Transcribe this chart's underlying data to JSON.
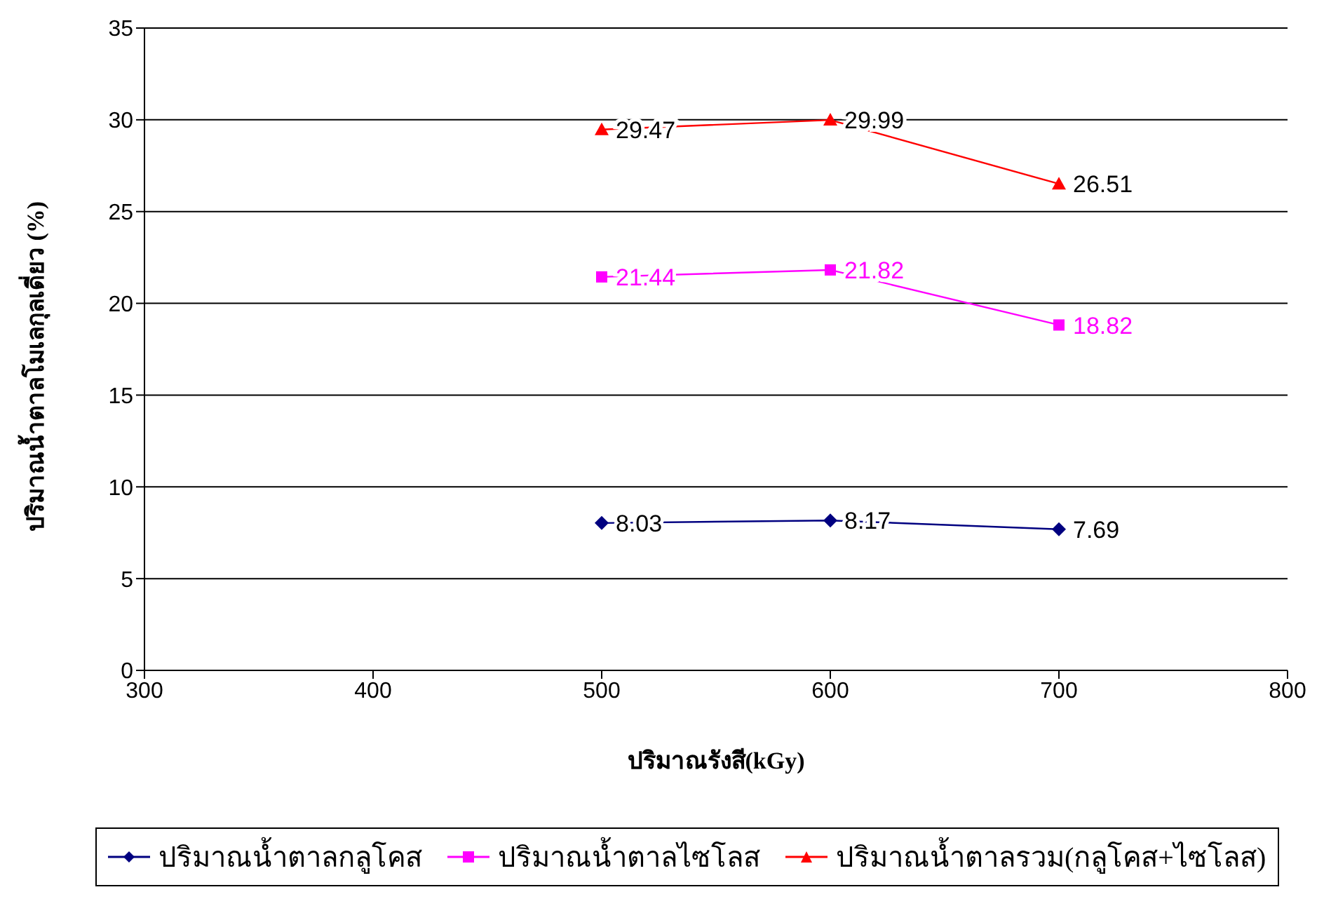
{
  "chart_data": {
    "type": "line",
    "xlabel": "ปริมาณรังสี(kGy)",
    "ylabel": "ปริมาณน้ำตาลโมเลกุลเดี่ยว (%)",
    "x": [
      500,
      600,
      700
    ],
    "series": [
      {
        "name": "ปริมาณน้ำตาลกลูโคส",
        "color": "#000080",
        "marker": "diamond",
        "values": [
          8.03,
          8.17,
          7.69
        ]
      },
      {
        "name": "ปริมาณน้ำตาลไซโลส",
        "color": "#ff00ff",
        "marker": "square",
        "values": [
          21.44,
          21.82,
          18.82
        ]
      },
      {
        "name": "ปริมาณน้ำตาลรวม(กลูโคส+ไซโลส)",
        "color": "#ff0000",
        "marker": "triangle",
        "values": [
          29.47,
          29.99,
          26.51
        ]
      }
    ],
    "xlim": [
      300,
      800
    ],
    "xticks": [
      300,
      400,
      500,
      600,
      700,
      800
    ],
    "ylim": [
      0,
      35
    ],
    "yticks": [
      0,
      5,
      10,
      15,
      20,
      25,
      30,
      35
    ],
    "grid": "y",
    "legend": "bottom",
    "data_labels": true
  }
}
